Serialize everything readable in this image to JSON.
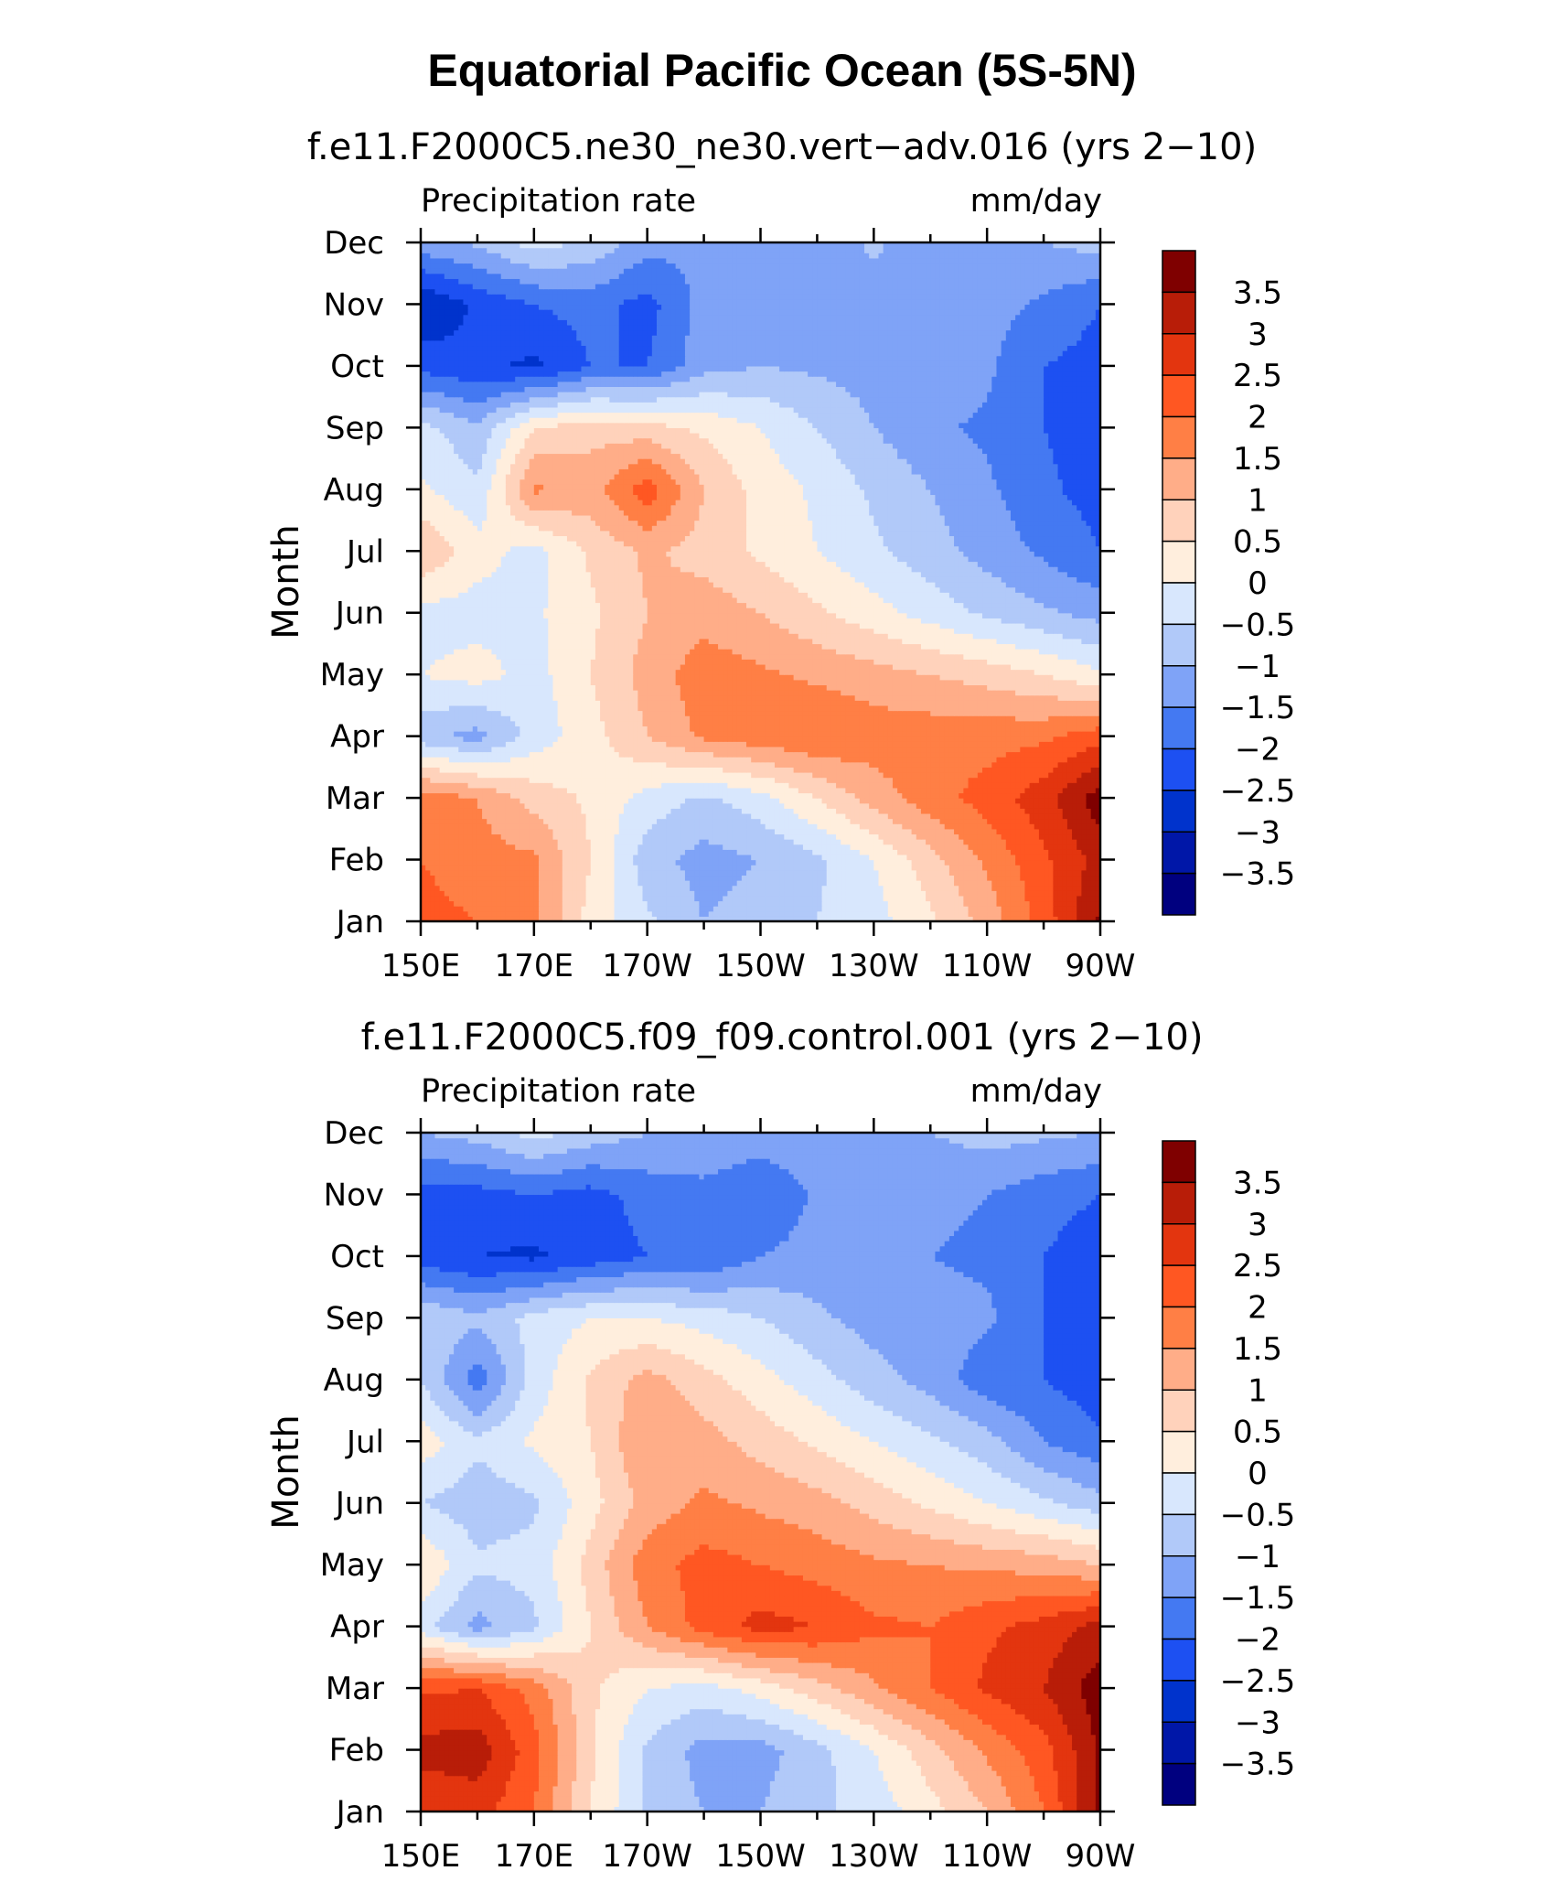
{
  "title": "Equatorial Pacific Ocean (5S-5N)",
  "colors": [
    "#00007f",
    "#0017a8",
    "#0033cc",
    "#1d50f2",
    "#4479f2",
    "#7fa3f7",
    "#b1c9f9",
    "#d8e7fd",
    "#ffeedd",
    "#ffd2bb",
    "#ffad88",
    "#ff7f45",
    "#ff5722",
    "#e3350f",
    "#b81d08",
    "#7f0000"
  ],
  "colorbar_labels": [
    "3.5",
    "3",
    "2.5",
    "2",
    "1.5",
    "1",
    "0.5",
    "0",
    "−0.5",
    "−1",
    "−1.5",
    "−2",
    "−2.5",
    "−3",
    "−3.5"
  ],
  "chart_data": [
    {
      "type": "heatmap",
      "title": "f.e11.F2000C5.ne30_ne30.vert−adv.016 (yrs 2−10)",
      "left_label": "Precipitation rate",
      "right_label": "mm/day",
      "ylabel": "Month",
      "xlabel": "",
      "x_ticks": [
        "150E",
        "170E",
        "170W",
        "150W",
        "130W",
        "110W",
        "90W"
      ],
      "y_ticks": [
        "Jan",
        "Feb",
        "Mar",
        "Apr",
        "May",
        "Jun",
        "Jul",
        "Aug",
        "Sep",
        "Oct",
        "Nov",
        "Dec"
      ],
      "x_grid_lon": [
        150,
        160,
        170,
        180,
        190,
        200,
        210,
        220,
        230,
        240,
        250,
        260,
        270
      ],
      "levels": [
        -4,
        -3.5,
        -3,
        -2.5,
        -2,
        -1.5,
        -1,
        -0.5,
        0,
        0.5,
        1,
        1.5,
        2,
        2.5,
        3,
        3.5,
        4
      ],
      "values": [
        [
          2.2,
          2.0,
          1.6,
          0.3,
          -0.4,
          -1.0,
          -0.8,
          -0.5,
          -0.2,
          0.4,
          1.2,
          2.2,
          3.6
        ],
        [
          2.0,
          1.7,
          1.6,
          0.5,
          -0.8,
          -1.2,
          -1.0,
          -0.6,
          0,
          0.8,
          1.6,
          2.4,
          3.2
        ],
        [
          1.8,
          1.5,
          0.8,
          0.4,
          -0.2,
          -0.6,
          -0.2,
          0.5,
          1.2,
          1.8,
          2.2,
          2.8,
          3.8
        ],
        [
          -0.8,
          -1.2,
          -0.3,
          0.3,
          1.0,
          1.6,
          1.8,
          2.0,
          1.8,
          1.8,
          1.8,
          1.9,
          2.3
        ],
        [
          0,
          0.2,
          -0.2,
          0.5,
          1.2,
          1.8,
          1.6,
          1.4,
          1.2,
          1.0,
          0.8,
          0.5,
          0.1
        ],
        [
          -0.2,
          -0.2,
          -0.1,
          0.4,
          1.0,
          1.3,
          1.0,
          0.6,
          0.2,
          -0.2,
          -0.6,
          -0.9,
          -1.2
        ],
        [
          1.0,
          0.2,
          -0.2,
          0.6,
          1.1,
          0.8,
          0.4,
          0,
          -0.4,
          -0.8,
          -1.2,
          -1.6,
          -2.0
        ],
        [
          0.1,
          -0.4,
          1.6,
          1.3,
          2.3,
          1.0,
          0.3,
          -0.1,
          -0.6,
          -1.0,
          -1.4,
          -1.9,
          -2.2
        ],
        [
          -0.3,
          -0.9,
          0.5,
          0.8,
          0.7,
          0.4,
          0,
          -0.5,
          -1.0,
          -1.4,
          -1.6,
          -2.0,
          -2.3
        ],
        [
          -2.2,
          -2.4,
          -2.6,
          -2.0,
          -2.0,
          -1.2,
          -1.0,
          -1.1,
          -1.2,
          -1.2,
          -1.4,
          -2.0,
          -2.2
        ],
        [
          -3.0,
          -2.4,
          -2.0,
          -1.8,
          -2.2,
          -1.3,
          -1.2,
          -1.2,
          -1.2,
          -1.3,
          -1.3,
          -1.6,
          -2.0
        ],
        [
          -1.2,
          -0.9,
          -0.3,
          -0.6,
          -1.3,
          -1.4,
          -1.5,
          -1.4,
          -0.9,
          -1.4,
          -1.5,
          -1.0,
          -0.8
        ]
      ]
    },
    {
      "type": "heatmap",
      "title": "f.e11.F2000C5.f09_f09.control.001 (yrs 2−10)",
      "left_label": "Precipitation rate",
      "right_label": "mm/day",
      "ylabel": "Month",
      "xlabel": "",
      "x_ticks": [
        "150E",
        "170E",
        "170W",
        "150W",
        "130W",
        "110W",
        "90W"
      ],
      "y_ticks": [
        "Jan",
        "Feb",
        "Mar",
        "Apr",
        "May",
        "Jun",
        "Jul",
        "Aug",
        "Sep",
        "Oct",
        "Nov",
        "Dec"
      ],
      "x_grid_lon": [
        150,
        160,
        170,
        180,
        190,
        200,
        210,
        220,
        230,
        240,
        250,
        260,
        270
      ],
      "levels": [
        -4,
        -3.5,
        -3,
        -2.5,
        -2,
        -1.5,
        -1,
        -0.5,
        0,
        0.5,
        1,
        1.5,
        2,
        2.5,
        3,
        3.5,
        4
      ],
      "values": [
        [
          2.5,
          2.7,
          2.0,
          0.5,
          -0.6,
          -1.0,
          -1.0,
          -0.6,
          -0.3,
          0.3,
          1.0,
          2.0,
          3.6
        ],
        [
          3.2,
          3.3,
          2.2,
          0.6,
          -0.6,
          -1.2,
          -1.2,
          -0.7,
          0,
          0.8,
          1.6,
          2.3,
          3.6
        ],
        [
          2.4,
          2.5,
          1.8,
          0.6,
          0,
          -0.2,
          0.2,
          0.8,
          1.4,
          2.0,
          2.6,
          3.0,
          3.8
        ],
        [
          -0.3,
          -1.2,
          -0.6,
          0.5,
          1.5,
          2.2,
          2.7,
          2.5,
          2.1,
          2.0,
          2.4,
          2.7,
          3.2
        ],
        [
          0.5,
          -0.4,
          -0.3,
          0.7,
          1.8,
          2.2,
          2.0,
          1.8,
          1.6,
          1.5,
          1.4,
          1.3,
          1.0
        ],
        [
          -0.5,
          -0.8,
          -0.6,
          0.3,
          1.2,
          1.6,
          1.4,
          1.2,
          0.8,
          0.4,
          0,
          -0.4,
          -0.8
        ],
        [
          0.3,
          -0.4,
          0.1,
          0.5,
          1.5,
          1.2,
          0.8,
          0.4,
          0,
          -0.4,
          -0.8,
          -1.5,
          -1.9
        ],
        [
          -0.5,
          -1.8,
          -0.3,
          0.6,
          1.2,
          0.7,
          0.2,
          -0.3,
          -0.8,
          -1.2,
          -1.8,
          -2.0,
          -2.3
        ],
        [
          -0.5,
          -0.9,
          -0.3,
          0,
          0,
          -0.2,
          -0.5,
          -0.9,
          -1.2,
          -1.3,
          -1.4,
          -2.0,
          -2.3
        ],
        [
          -2.3,
          -2.5,
          -2.6,
          -2.3,
          -2.0,
          -2.0,
          -1.5,
          -1.3,
          -1.3,
          -1.5,
          -1.6,
          -2.0,
          -2.3
        ],
        [
          -2.2,
          -2.2,
          -2.0,
          -2.2,
          -1.8,
          -1.7,
          -2.0,
          -1.4,
          -1.3,
          -1.4,
          -1.5,
          -1.8,
          -2.0
        ],
        [
          -1.0,
          -0.8,
          -0.3,
          -0.7,
          -1.0,
          -1.0,
          -1.2,
          -1.1,
          -1.0,
          -1.0,
          -0.8,
          -0.9,
          -1.0
        ]
      ]
    }
  ]
}
